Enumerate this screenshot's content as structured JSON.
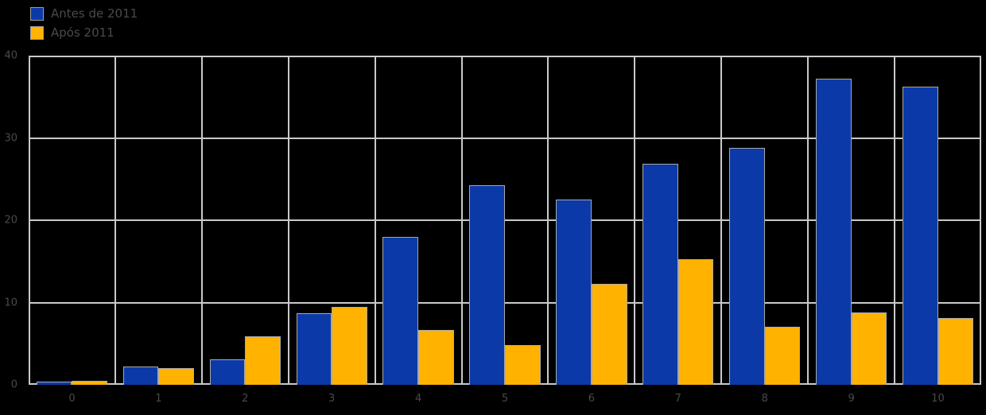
{
  "legend": {
    "items": [
      {
        "label": "Antes de 2011",
        "color": "#0b3aa8"
      },
      {
        "label": "Após 2011",
        "color": "#ffb300"
      }
    ]
  },
  "chart_data": {
    "type": "bar",
    "title": "",
    "xlabel": "",
    "ylabel": "",
    "categories": [
      "0",
      "1",
      "2",
      "3",
      "4",
      "5",
      "6",
      "7",
      "8",
      "9",
      "10"
    ],
    "series": [
      {
        "name": "Antes de 2011",
        "color": "#0b3aa8",
        "values": [
          0.4,
          2.2,
          3.1,
          8.7,
          18.0,
          24.3,
          22.5,
          26.9,
          28.8,
          37.2,
          36.2
        ]
      },
      {
        "name": "Após 2011",
        "color": "#ffb300",
        "values": [
          0.45,
          2.0,
          5.9,
          9.5,
          6.7,
          4.8,
          12.3,
          15.3,
          7.1,
          8.8,
          8.1
        ]
      }
    ],
    "ylim": [
      0,
      40
    ],
    "yticks": [
      0,
      10,
      20,
      30,
      40
    ],
    "grid": true,
    "legend_position": "top-left",
    "colors": {
      "background": "#000000",
      "gridline": "#c9c9c9",
      "text": "#4a4a4a",
      "bar_border": "#a8a8a8"
    }
  }
}
